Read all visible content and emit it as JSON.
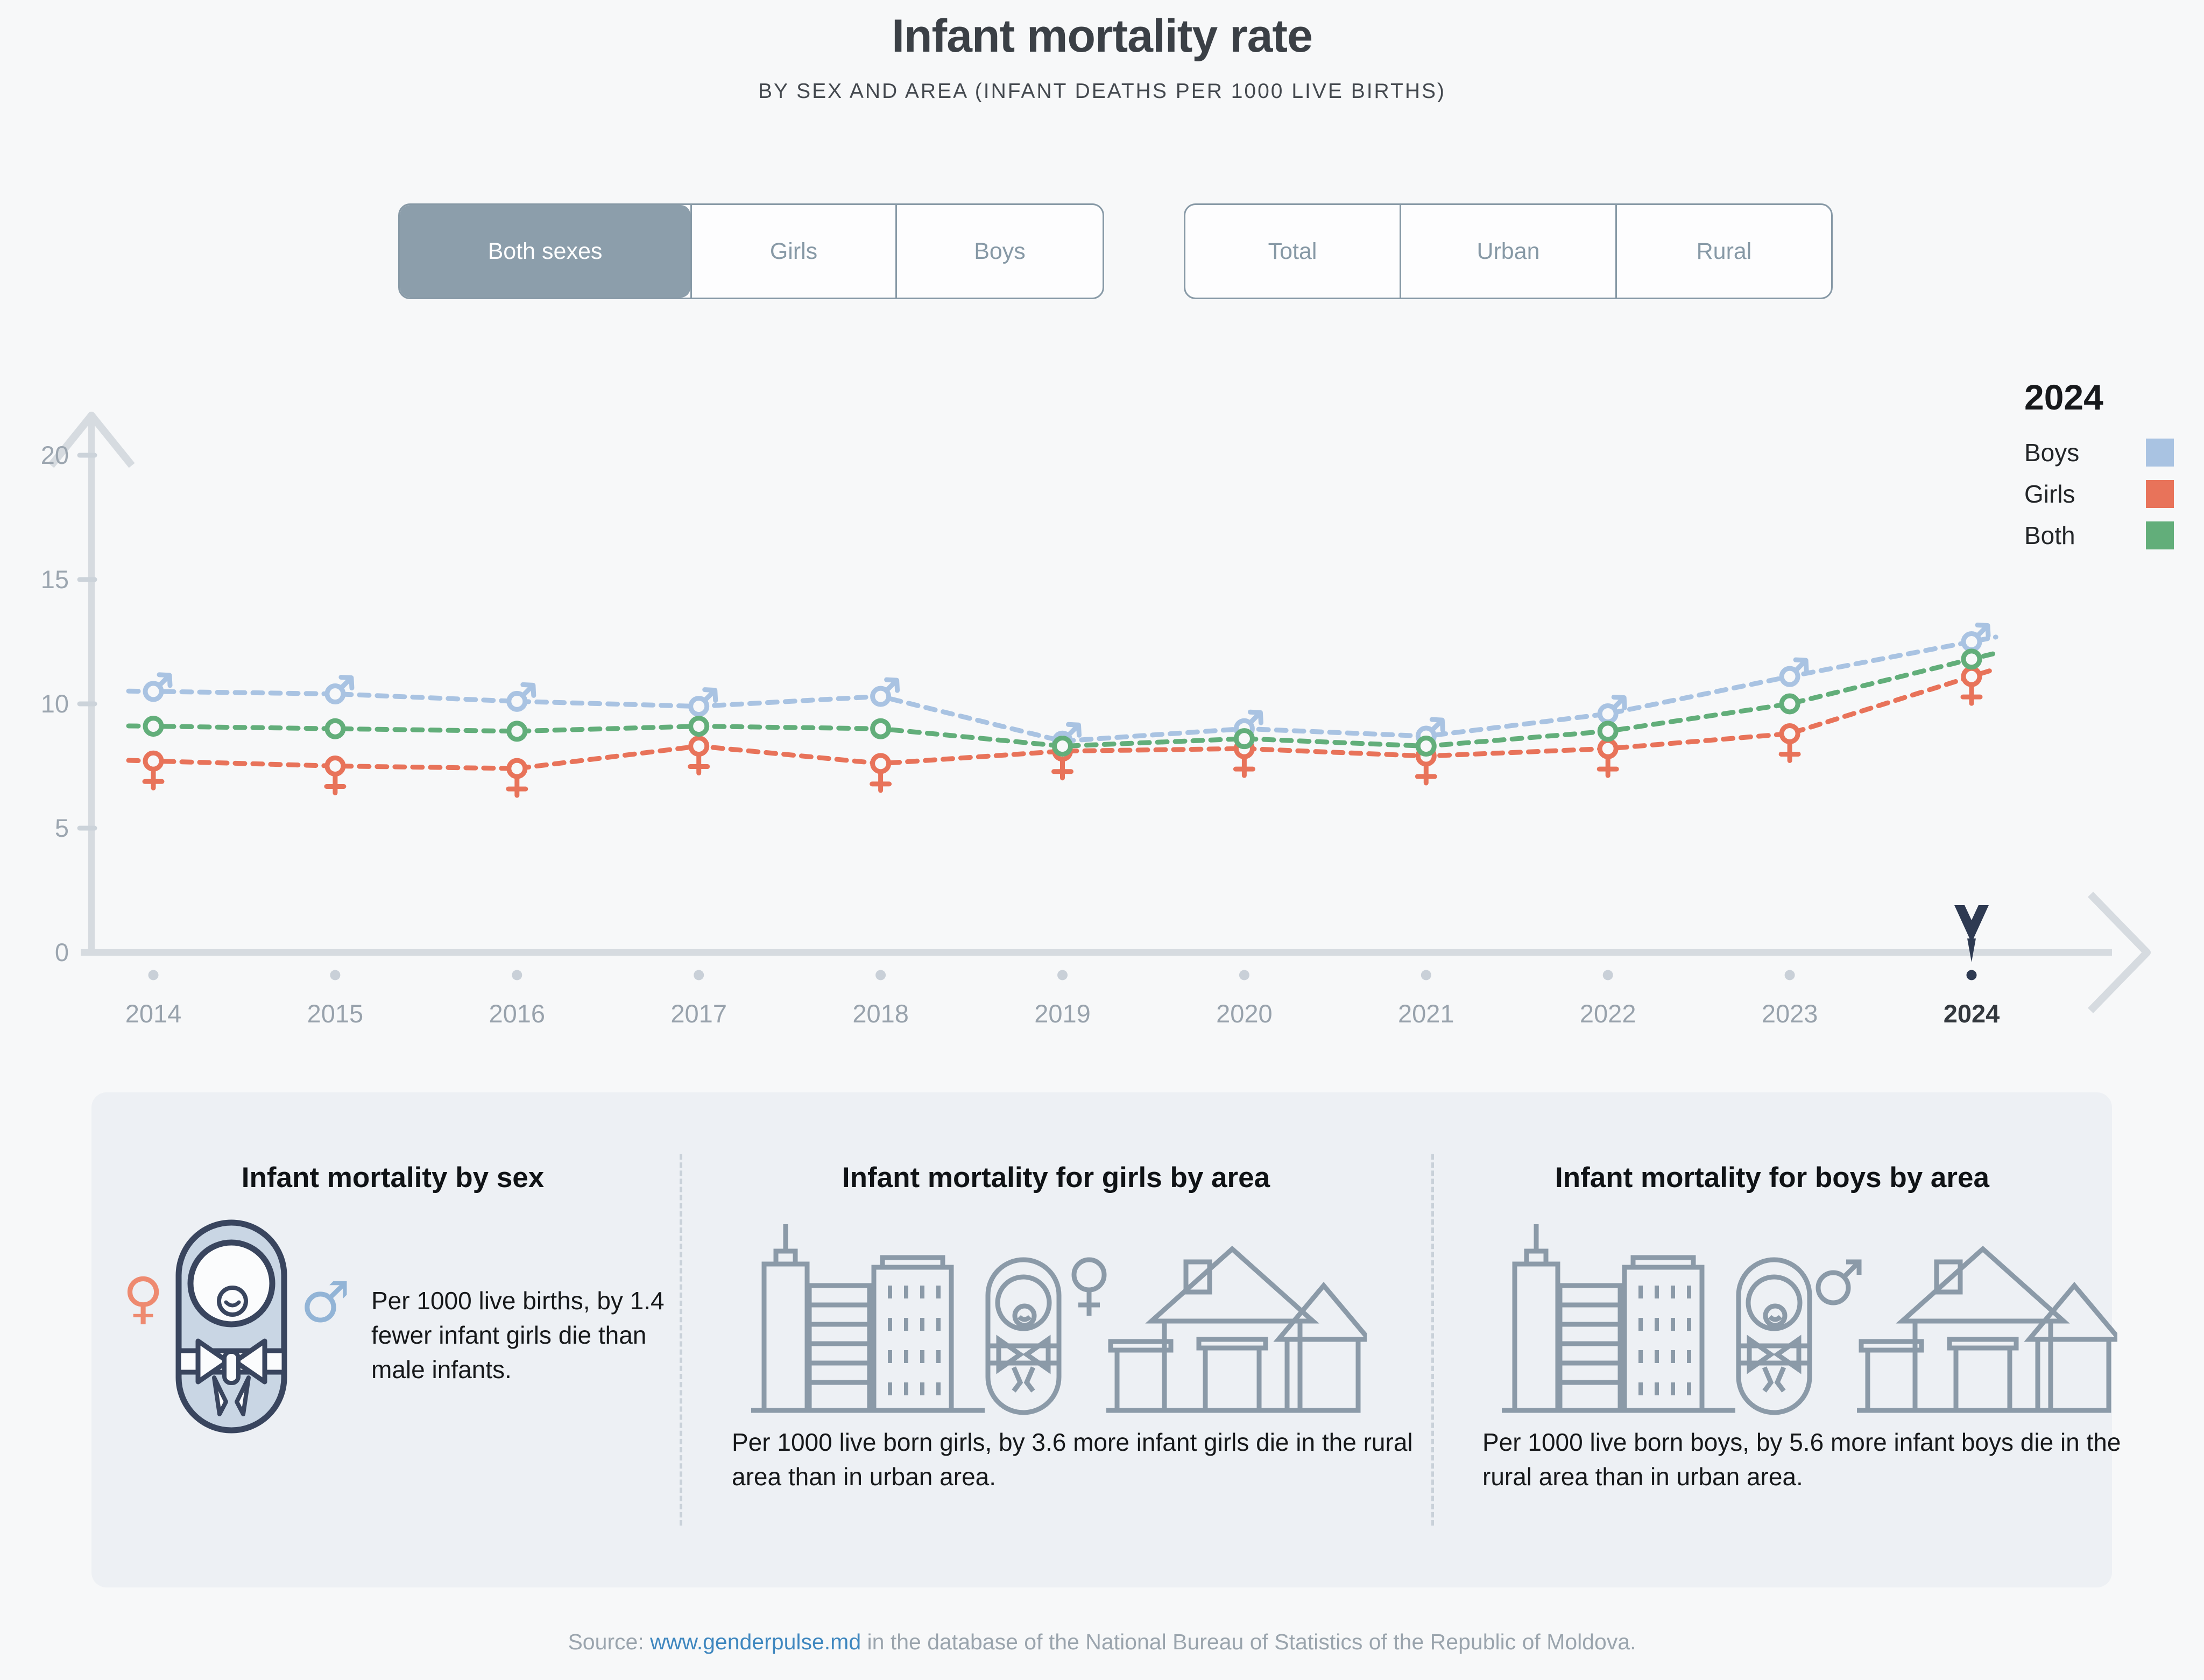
{
  "header": {
    "title": "Infant mortality rate",
    "subtitle": "BY SEX AND AREA (INFANT DEATHS PER 1000 LIVE BIRTHS)"
  },
  "controls": {
    "sex_toggle": {
      "options": [
        {
          "label": "Both sexes",
          "selected": true
        },
        {
          "label": "Girls",
          "selected": false
        },
        {
          "label": "Boys",
          "selected": false
        }
      ]
    },
    "area_toggle": {
      "options": [
        {
          "label": "Total",
          "selected": false
        },
        {
          "label": "Urban",
          "selected": false
        },
        {
          "label": "Rural",
          "selected": false
        }
      ]
    }
  },
  "legend": {
    "year": "2024",
    "items": [
      {
        "label": "Boys",
        "color": "#a9c3e2"
      },
      {
        "label": "Girls",
        "color": "#e8735a"
      },
      {
        "label": "Both",
        "color": "#62ae7a"
      }
    ]
  },
  "chart_data": {
    "type": "line",
    "line_style": "dashed",
    "grid": false,
    "legend_position": "top-right",
    "x": [
      2014,
      2015,
      2016,
      2017,
      2018,
      2019,
      2020,
      2021,
      2022,
      2023,
      2024
    ],
    "series": [
      {
        "name": "Boys",
        "marker": "male",
        "color": "#a9c3e2",
        "values": [
          10.5,
          10.4,
          10.1,
          9.9,
          10.3,
          8.5,
          9.0,
          8.7,
          9.6,
          11.1,
          12.5
        ]
      },
      {
        "name": "Girls",
        "marker": "female",
        "color": "#e8735a",
        "values": [
          7.7,
          7.5,
          7.4,
          8.3,
          7.6,
          8.1,
          8.2,
          7.9,
          8.2,
          8.8,
          11.1
        ]
      },
      {
        "name": "Both",
        "marker": "circle",
        "color": "#62ae7a",
        "values": [
          9.1,
          9.0,
          8.9,
          9.1,
          9.0,
          8.3,
          8.6,
          8.3,
          8.9,
          10.0,
          11.8
        ]
      }
    ],
    "ylim": [
      0,
      20
    ],
    "yticks": [
      0,
      5,
      10,
      15,
      20
    ],
    "highlighted_year": 2024,
    "axis_color": "#d6dbe0",
    "tick_label_color": "#9ca6b0",
    "highlight_color": "#2e3a52",
    "highlight_label_color": "#33383e",
    "ylabel": "",
    "xlabel": ""
  },
  "cards": [
    {
      "title": "Infant mortality by sex",
      "text": "Per 1000 live births, by 1.4 fewer infant girls die than male infants.",
      "female_symbol": "♀",
      "male_symbol": "♂"
    },
    {
      "title": "Infant mortality for girls by area",
      "text": "Per 1000 live born girls, by 3.6 more infant girls die in the rural area than in urban area.",
      "sign": "female"
    },
    {
      "title": "Infant mortality for boys by area",
      "text": "Per 1000 live born boys, by 5.6 more infant boys die in the rural area than in urban area.",
      "sign": "male"
    }
  ],
  "footer": {
    "prefix": "Source: ",
    "link": "www.genderpulse.md",
    "suffix": " in the database of the National Bureau of Statistics of the Republic of Moldova."
  }
}
